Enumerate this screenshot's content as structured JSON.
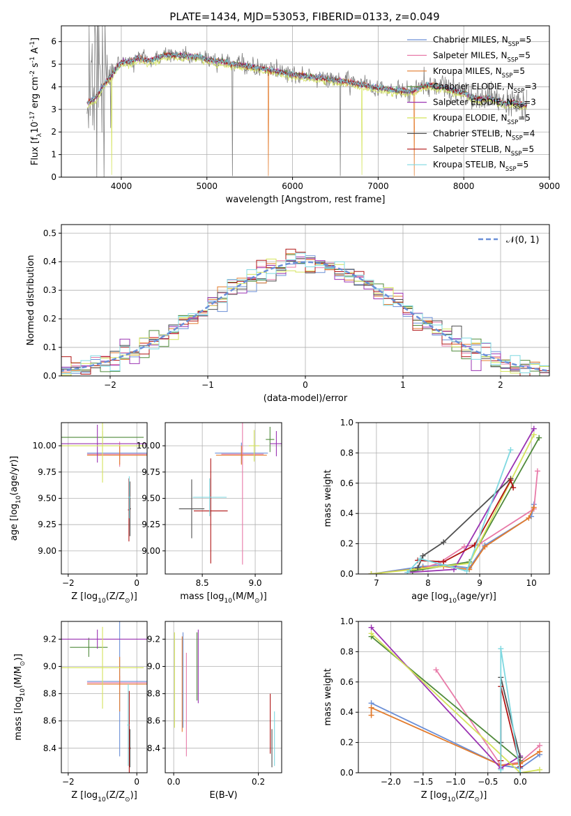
{
  "figure_title": "PLATE=1434, MJD=53053, FIBERID=0133, z=0.049",
  "legend_panel1": [
    "Chabrier MILES, N_{SSP}=5",
    "Salpeter MILES, N_{SSP}=5",
    "Kroupa MILES, N_{SSP}=5",
    "Chabrier ELODIE, N_{SSP}=3",
    "Salpeter ELODIE, N_{SSP}=3",
    "Kroupa ELODIE, N_{SSP}=5",
    "Chabrier STELIB, N_{SSP}=4",
    "Salpeter STELIB, N_{SSP}=5",
    "Kroupa STELIB, N_{SSP}=5"
  ],
  "model_colors": [
    "#6b8fd6",
    "#e87aa8",
    "#e37b2c",
    "#4f8a3a",
    "#9a33b2",
    "#d4e35a",
    "#505050",
    "#b01515",
    "#7ed8e0"
  ],
  "chart_data": [
    {
      "id": "spectrum",
      "type": "line",
      "xlabel": "wavelength [Angstrom, rest frame]",
      "ylabel": "Flux [f_λ10^{-17} erg cm^{-2} s^{-1} A^{-1}]",
      "xlim": [
        3300,
        9000
      ],
      "ylim": [
        0,
        6.7
      ],
      "xticks": [
        4000,
        5000,
        6000,
        7000,
        8000,
        9000
      ],
      "yticks": [
        0,
        1,
        2,
        3,
        4,
        5,
        6
      ],
      "data_color": "#808080",
      "continuum": {
        "x": [
          3600,
          3650,
          3700,
          3800,
          3900,
          4000,
          4100,
          4200,
          4300,
          4400,
          4500,
          4600,
          4700,
          4800,
          4900,
          5000,
          5200,
          5400,
          5600,
          5800,
          6000,
          6200,
          6400,
          6600,
          6800,
          7000,
          7200,
          7400,
          7500,
          7600,
          7700,
          7800,
          7900,
          8000,
          8100,
          8200,
          8300,
          8400,
          8500,
          8600,
          8700
        ],
        "y": [
          3.3,
          3.4,
          3.5,
          4.1,
          4.6,
          5.1,
          5.1,
          5.3,
          5.15,
          5.25,
          5.4,
          5.4,
          5.4,
          5.35,
          5.35,
          5.2,
          5.1,
          4.95,
          4.85,
          4.7,
          4.55,
          4.45,
          4.35,
          4.25,
          4.1,
          3.95,
          3.85,
          3.8,
          4.0,
          4.1,
          4.0,
          3.95,
          3.8,
          3.75,
          3.55,
          3.45,
          3.55,
          3.35,
          3.25,
          3.3,
          3.2
        ]
      }
    },
    {
      "id": "residuals",
      "type": "histogram",
      "xlabel": "(data-model)/error",
      "ylabel": "Normed distribution",
      "xlim": [
        -2.5,
        2.5
      ],
      "ylim": [
        0,
        0.53
      ],
      "xticks": [
        -2,
        -1,
        0,
        1,
        2
      ],
      "yticks": [
        0.0,
        0.1,
        0.2,
        0.3,
        0.4,
        0.5
      ],
      "legend": "𝒩(0, 1)",
      "gaussian": {
        "mu": 0,
        "sigma": 1
      }
    },
    {
      "id": "age_vs_Z",
      "type": "errorbar",
      "xlabel": "Z [log_{10}(Z/Z_⊙)]",
      "ylabel": "age  [log_{10}(age/yr)]",
      "xlim": [
        -2.2,
        0.3
      ],
      "ylim": [
        8.78,
        10.22
      ],
      "xticks": [
        -2,
        0
      ],
      "yticks": [
        9.0,
        9.25,
        9.5,
        9.75,
        10.0
      ],
      "points": [
        {
          "x": -0.5,
          "xerr": 0.95,
          "y": 9.93,
          "yerr": 0.06
        },
        {
          "x": -0.5,
          "xerr": 0.95,
          "y": 9.92,
          "yerr": 0.12
        },
        {
          "x": -0.5,
          "xerr": 0.95,
          "y": 9.91,
          "yerr": 0.09
        },
        {
          "x": -1.0,
          "xerr": 1.2,
          "y": 10.08,
          "yerr": 0.06
        },
        {
          "x": -1.15,
          "xerr": 1.45,
          "y": 10.02,
          "yerr": 0.18
        },
        {
          "x": -1.0,
          "xerr": 1.2,
          "y": 10.0,
          "yerr": 0.35
        },
        {
          "x": -0.2,
          "xerr": 0.03,
          "y": 9.4,
          "yerr": 0.26
        },
        {
          "x": -0.23,
          "xerr": 0.03,
          "y": 9.39,
          "yerr": 0.3
        },
        {
          "x": -0.22,
          "xerr": 0.03,
          "y": 9.51,
          "yerr": 0.2
        }
      ]
    },
    {
      "id": "age_vs_mass",
      "type": "errorbar",
      "xlabel": "mass [log_{10}(M/M_⊙)]",
      "ylabel": "",
      "xlim": [
        8.15,
        9.25
      ],
      "ylim": [
        8.78,
        10.22
      ],
      "xticks": [
        8.5,
        9.0
      ],
      "yticks": [
        9.0,
        9.25,
        9.5,
        9.75,
        10.0
      ],
      "points": [
        {
          "x": 8.87,
          "xerr": 0.25,
          "y": 9.93,
          "yerr": 0.1
        },
        {
          "x": 8.88,
          "xerr": 0.2,
          "y": 9.92,
          "yerr": 1.05
        },
        {
          "x": 8.87,
          "xerr": 0.24,
          "y": 9.91,
          "yerr": 0.09
        },
        {
          "x": 9.14,
          "xerr": 0.04,
          "y": 10.06,
          "yerr": 0.12
        },
        {
          "x": 9.2,
          "xerr": 0.06,
          "y": 10.02,
          "yerr": 0.12
        },
        {
          "x": 8.99,
          "xerr": 0.05,
          "y": 10.0,
          "yerr": 0.15
        },
        {
          "x": 8.4,
          "xerr": 0.12,
          "y": 9.4,
          "yerr": 0.28
        },
        {
          "x": 8.58,
          "xerr": 0.16,
          "y": 9.38,
          "yerr": 0.5
        },
        {
          "x": 8.57,
          "xerr": 0.16,
          "y": 9.51,
          "yerr": 0.18
        }
      ]
    },
    {
      "id": "weight_vs_age",
      "type": "line",
      "xlabel": "age  [log_{10}(age/yr)]",
      "ylabel": "mass weight",
      "xlim": [
        6.65,
        10.35
      ],
      "ylim": [
        0,
        1.0
      ],
      "xticks": [
        7,
        8,
        9,
        10
      ],
      "yticks": [
        0.0,
        0.2,
        0.4,
        0.6,
        0.8,
        1.0
      ],
      "series": [
        {
          "x": [
            6.9,
            7.9,
            8.3,
            8.8,
            9.1,
            10.0,
            10.05
          ],
          "y": [
            0.0,
            0.05,
            0.06,
            0.04,
            0.19,
            0.38,
            0.46
          ]
        },
        {
          "x": [
            7.7,
            8.2,
            8.7,
            9.0,
            10.05,
            10.12
          ],
          "y": [
            0.02,
            0.07,
            0.18,
            0.2,
            0.43,
            0.68
          ]
        },
        {
          "x": [
            6.9,
            7.9,
            8.3,
            8.8,
            9.1,
            9.95,
            10.05
          ],
          "y": [
            0.0,
            0.04,
            0.05,
            0.03,
            0.18,
            0.37,
            0.44
          ]
        },
        {
          "x": [
            7.7,
            8.8,
            10.15
          ],
          "y": [
            0.02,
            0.08,
            0.9
          ]
        },
        {
          "x": [
            7.6,
            8.5,
            10.05
          ],
          "y": [
            0.01,
            0.03,
            0.96
          ]
        },
        {
          "x": [
            6.9,
            8.8,
            10.05
          ],
          "y": [
            0.0,
            0.07,
            0.92
          ]
        },
        {
          "x": [
            7.8,
            7.9,
            8.3,
            9.6
          ],
          "y": [
            0.04,
            0.12,
            0.21,
            0.63
          ]
        },
        {
          "x": [
            7.8,
            8.3,
            8.9,
            9.6,
            9.65
          ],
          "y": [
            0.09,
            0.08,
            0.19,
            0.62,
            0.57
          ]
        },
        {
          "x": [
            7.6,
            7.85,
            8.75,
            9.6
          ],
          "y": [
            0.01,
            0.1,
            0.02,
            0.82
          ]
        }
      ]
    },
    {
      "id": "mass_vs_Z",
      "type": "errorbar",
      "xlabel": "Z [log_{10}(Z/Z_⊙)]",
      "ylabel": "mass [log_{10}(M/M_⊙)]",
      "xlim": [
        -2.2,
        0.3
      ],
      "ylim": [
        8.22,
        9.33
      ],
      "xticks": [
        -2,
        0
      ],
      "yticks": [
        8.4,
        8.6,
        8.8,
        9.0,
        9.2
      ],
      "points": [
        {
          "x": -0.5,
          "xerr": 0.95,
          "y": 8.89,
          "yerr": 0.55
        },
        {
          "x": -0.5,
          "xerr": 0.95,
          "y": 8.88,
          "yerr": 0.05
        },
        {
          "x": -0.5,
          "xerr": 0.95,
          "y": 8.87,
          "yerr": 0.2
        },
        {
          "x": -1.4,
          "xerr": 0.55,
          "y": 9.14,
          "yerr": 0.07
        },
        {
          "x": -1.15,
          "xerr": 1.5,
          "y": 9.2,
          "yerr": 0.07
        },
        {
          "x": -1.0,
          "xerr": 1.2,
          "y": 8.99,
          "yerr": 0.3
        },
        {
          "x": -0.2,
          "xerr": 0.03,
          "y": 8.4,
          "yerr": 0.14
        },
        {
          "x": -0.22,
          "xerr": 0.03,
          "y": 8.4,
          "yerr": 0.42
        },
        {
          "x": -0.25,
          "xerr": 0.03,
          "y": 8.57,
          "yerr": 0.3
        }
      ]
    },
    {
      "id": "mass_vs_EBV",
      "type": "errorbar",
      "xlabel": "E(B-V)",
      "ylabel": "",
      "xlim": [
        -0.02,
        0.255
      ],
      "ylim": [
        8.22,
        9.33
      ],
      "xticks": [
        0.0,
        0.2
      ],
      "yticks": [
        8.4,
        8.6,
        8.8,
        9.0,
        9.2
      ],
      "points": [
        {
          "x": 0.022,
          "y": 8.9,
          "yerr": 0.35
        },
        {
          "x": 0.03,
          "y": 8.72,
          "yerr": 0.38
        },
        {
          "x": 0.02,
          "y": 8.87,
          "yerr": 0.35
        },
        {
          "x": 0.055,
          "y": 9.0,
          "yerr": 0.25
        },
        {
          "x": 0.058,
          "y": 9.0,
          "yerr": 0.27
        },
        {
          "x": 0.002,
          "y": 8.9,
          "yerr": 0.35
        },
        {
          "x": 0.232,
          "y": 8.4,
          "yerr": 0.14
        },
        {
          "x": 0.228,
          "y": 8.58,
          "yerr": 0.22
        },
        {
          "x": 0.238,
          "y": 8.47,
          "yerr": 0.2
        }
      ]
    },
    {
      "id": "weight_vs_Z",
      "type": "line",
      "xlabel": "Z [log_{10}(Z/Z_⊙)]",
      "ylabel": "mass weight",
      "xlim": [
        -2.5,
        0.45
      ],
      "ylim": [
        0,
        1.0
      ],
      "xticks": [
        -2.0,
        -1.5,
        -1.0,
        -0.5,
        0.0
      ],
      "yticks": [
        0.0,
        0.2,
        0.4,
        0.6,
        0.8,
        1.0
      ],
      "series": [
        {
          "x": [
            -2.3,
            -0.3,
            0.0,
            0.3
          ],
          "y": [
            0.46,
            0.05,
            0.03,
            0.12
          ]
        },
        {
          "x": [
            -1.3,
            -0.3,
            0.0,
            0.3
          ],
          "y": [
            0.68,
            0.05,
            0.07,
            0.18
          ]
        },
        {
          "x": [
            -2.3,
            -2.3,
            -0.3,
            0.0,
            0.3
          ],
          "y": [
            0.38,
            0.43,
            0.05,
            0.06,
            0.14
          ]
        },
        {
          "x": [
            -2.3,
            0.0
          ],
          "y": [
            0.9,
            0.08
          ]
        },
        {
          "x": [
            -2.3,
            -0.3,
            0.0
          ],
          "y": [
            0.96,
            0.03,
            0.11
          ]
        },
        {
          "x": [
            -2.3,
            0.0,
            0.3
          ],
          "y": [
            0.92,
            0.0,
            0.02
          ]
        },
        {
          "x": [
            -0.3,
            -0.3,
            0.0
          ],
          "y": [
            0.2,
            0.63,
            0.1
          ]
        },
        {
          "x": [
            -0.3,
            -0.3,
            0.0
          ],
          "y": [
            0.08,
            0.57,
            0.04
          ]
        },
        {
          "x": [
            -0.3,
            -0.3,
            0.0
          ],
          "y": [
            0.02,
            0.82,
            0.0
          ]
        }
      ]
    }
  ]
}
